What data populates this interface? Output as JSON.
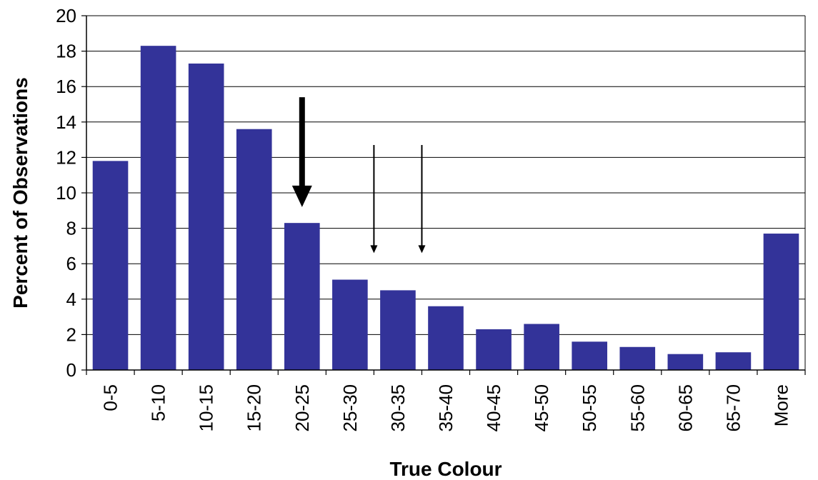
{
  "chart_data": {
    "type": "bar",
    "title": "",
    "xlabel": "True Colour",
    "ylabel": "Percent of Observations",
    "ylim": [
      0,
      20
    ],
    "yticks": [
      0,
      2,
      4,
      6,
      8,
      10,
      12,
      14,
      16,
      18,
      20
    ],
    "grid": true,
    "legend": "none",
    "categories": [
      "0-5",
      "5-10",
      "10-15",
      "15-20",
      "20-25",
      "25-30",
      "30-35",
      "35-40",
      "40-45",
      "45-50",
      "50-55",
      "55-60",
      "60-65",
      "65-70",
      "More"
    ],
    "values": [
      11.8,
      18.3,
      17.3,
      13.6,
      8.3,
      5.1,
      4.5,
      3.6,
      2.3,
      2.6,
      1.6,
      1.3,
      0.9,
      1.0,
      7.7
    ],
    "bar_color": "#333399",
    "annotations": [
      {
        "type": "arrow",
        "category": "20-25",
        "y_start": 15.4,
        "y_end": 9.2,
        "weight": "thick"
      },
      {
        "type": "arrow",
        "category_boundary": [
          "25-30",
          "30-35"
        ],
        "y_start": 12.7,
        "y_end": 6.6,
        "weight": "thin"
      },
      {
        "type": "arrow",
        "category_boundary": [
          "30-35",
          "35-40"
        ],
        "y_start": 12.7,
        "y_end": 6.6,
        "weight": "thin"
      }
    ]
  }
}
